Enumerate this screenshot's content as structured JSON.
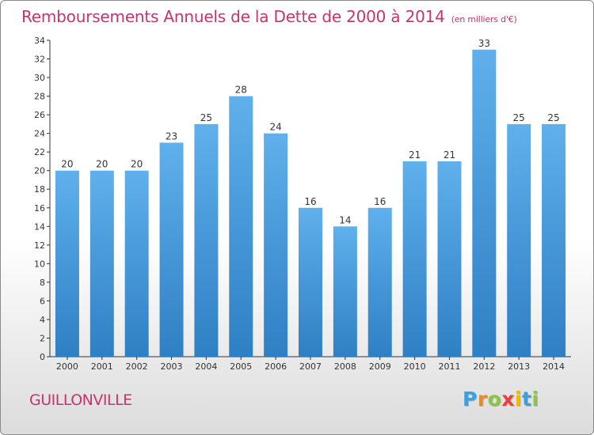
{
  "chart_data": {
    "type": "bar",
    "title": "Remboursements Annuels de la Dette de 2000 à 2014",
    "subtitle": "(en milliers d'€)",
    "categories": [
      "2000",
      "2001",
      "2002",
      "2003",
      "2004",
      "2005",
      "2006",
      "2007",
      "2008",
      "2009",
      "2010",
      "2011",
      "2012",
      "2013",
      "2014"
    ],
    "values": [
      20,
      20,
      20,
      23,
      25,
      28,
      24,
      16,
      14,
      16,
      21,
      21,
      33,
      25,
      25
    ],
    "ylim": [
      0,
      34
    ],
    "yticks": [
      0,
      2,
      4,
      6,
      8,
      10,
      12,
      14,
      16,
      18,
      20,
      22,
      24,
      26,
      28,
      30,
      32,
      34
    ],
    "xlabel": "",
    "ylabel": "",
    "grid": false,
    "bar_color_top": "#5fb0ec",
    "bar_color_bottom": "#2f7fc4"
  },
  "commune": "GUILLONVILLE",
  "logo": {
    "letters": [
      "P",
      "r",
      "o",
      "x",
      "i",
      "t",
      "i"
    ],
    "colors": [
      "#3aa0e0",
      "#f08a1c",
      "#8cc63f",
      "#e8403a",
      "#f5b800",
      "#3aa0e0",
      "#8cc63f"
    ]
  },
  "colors": {
    "accent": "#c8336e",
    "axis": "#333333"
  }
}
